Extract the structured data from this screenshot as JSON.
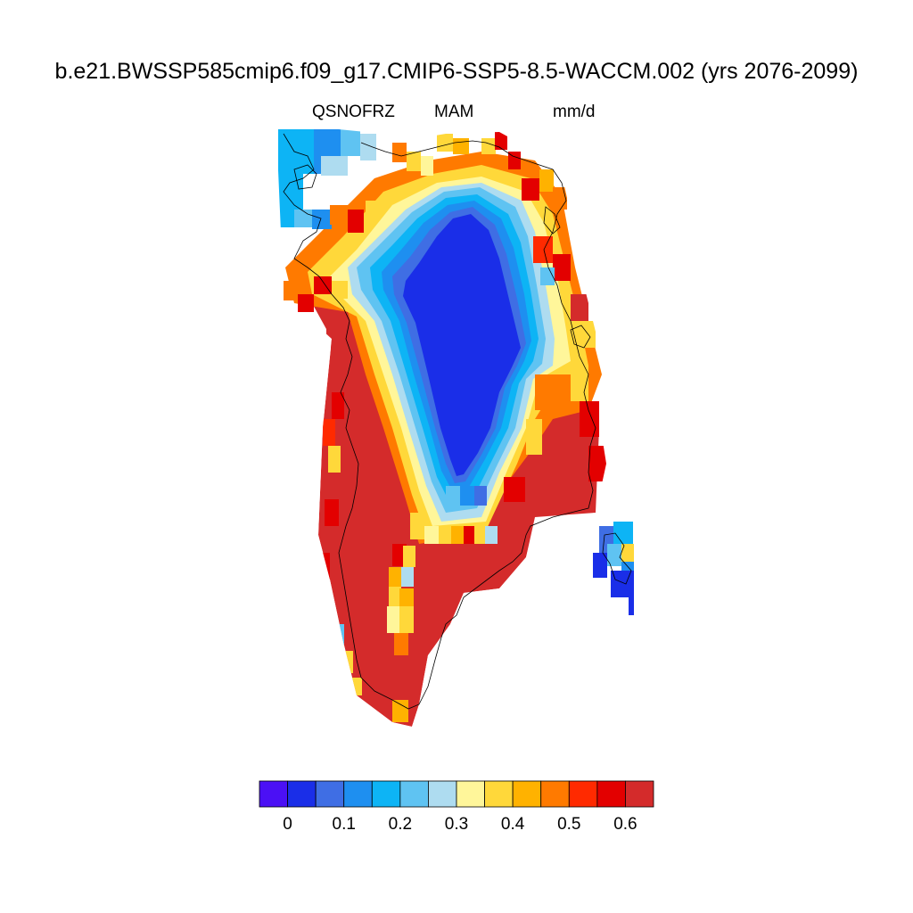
{
  "figure": {
    "title": "b.e21.BWSSP585cmip6.f09_g17.CMIP6-SSP5-8.5-WACCM.002 (yrs 2076-2099)",
    "left_string": "QSNOFRZ",
    "center_string": "MAM",
    "right_string": "mm/d"
  },
  "map": {
    "region": "Greenland",
    "variable": "QSNOFRZ",
    "season": "MAM",
    "units": "mm/d",
    "coastline_color": "#000000"
  },
  "colorbar": {
    "colors": [
      "#4b10f5",
      "#1a2ee8",
      "#3f6ee4",
      "#1e8ff0",
      "#0db4f5",
      "#5fc3f2",
      "#aedcf0",
      "#fff69a",
      "#ffd83a",
      "#ffb200",
      "#ff7a00",
      "#ff2a00",
      "#e30000",
      "#d42b2b"
    ],
    "tick_labels": [
      "0",
      "0.1",
      "0.2",
      "0.3",
      "0.4",
      "0.5",
      "0.6"
    ]
  }
}
